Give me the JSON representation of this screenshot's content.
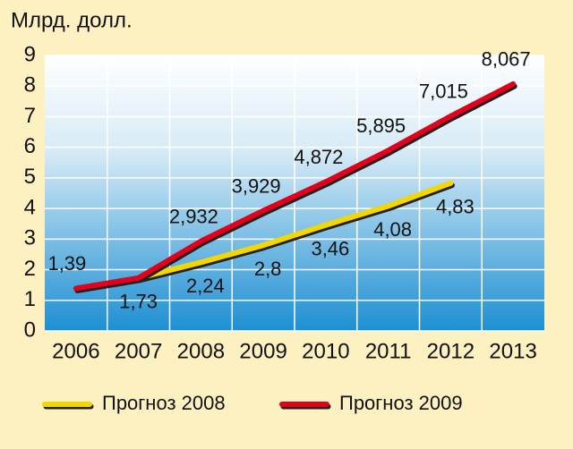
{
  "chart_data": {
    "type": "line",
    "y_label": "Млрд. долл.",
    "categories": [
      "2006",
      "2007",
      "2008",
      "2009",
      "2010",
      "2011",
      "2012",
      "2013"
    ],
    "series": [
      {
        "name": "Прогноз 2008",
        "color": "#f4d600",
        "values": [
          null,
          1.73,
          2.24,
          2.8,
          3.46,
          4.08,
          4.83,
          null
        ],
        "value_labels": [
          null,
          "1,73",
          "2,24",
          "2,8",
          "3,46",
          "4,08",
          "4,83",
          null
        ]
      },
      {
        "name": "Прогноз 2009",
        "color": "#e3001b",
        "values": [
          1.39,
          1.73,
          2.932,
          3.929,
          4.872,
          5.895,
          7.015,
          8.067
        ],
        "value_labels": [
          "1,39",
          null,
          "2,932",
          "3,929",
          "4,872",
          "5,895",
          "7,015",
          "8,067"
        ]
      }
    ],
    "ylim": [
      0,
      9
    ],
    "yticks": [
      0,
      1,
      2,
      3,
      4,
      5,
      6,
      7,
      8,
      9
    ],
    "grid": true,
    "legend": "bottom"
  }
}
